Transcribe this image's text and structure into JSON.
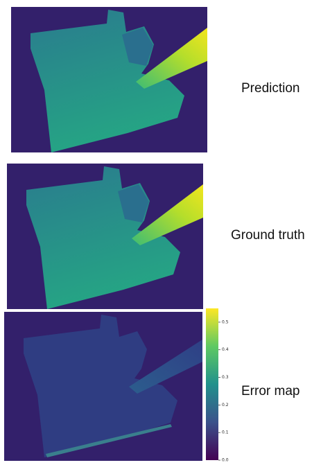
{
  "panels": [
    {
      "label": "Prediction"
    },
    {
      "label": "Ground truth"
    },
    {
      "label": "Error map",
      "colorbar": {
        "lim": [
          0,
          0.55
        ],
        "ticks": [
          {
            "value": 0,
            "label": "0.0"
          },
          0.1,
          0.2,
          0.3,
          0.4,
          0.5
        ]
      }
    }
  ]
}
